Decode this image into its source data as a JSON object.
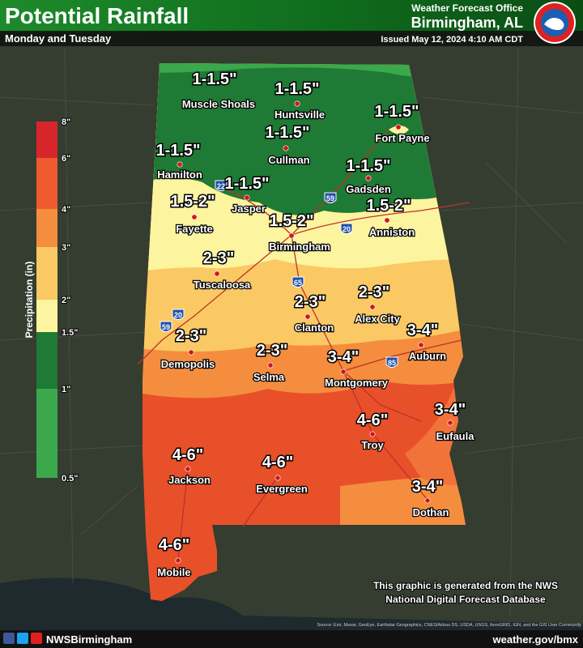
{
  "header": {
    "title": "Potential Rainfall",
    "subtitle": "Monday and Tuesday",
    "office": "Weather Forecast Office",
    "location": "Birmingham, AL",
    "issued": "Issued May 12, 2024 4:10 AM CDT"
  },
  "legend": {
    "title": "Precipitation (in)",
    "labels": [
      "8\"",
      "6\"",
      "4\"",
      "3\"",
      "2\"",
      "1.5\"",
      "1\"",
      "0.5\""
    ],
    "colors": [
      "#d6262a",
      "#ee5a2e",
      "#f58d3e",
      "#fac964",
      "#fcf49e",
      "#1e7a34",
      "#3ba84c"
    ]
  },
  "cities": [
    {
      "name": "Muscle Shoals",
      "amount": "1-1.5\""
    },
    {
      "name": "Huntsville",
      "amount": "1-1.5\""
    },
    {
      "name": "Fort Payne",
      "amount": "1-1.5\""
    },
    {
      "name": "Cullman",
      "amount": "1-1.5\""
    },
    {
      "name": "Hamilton",
      "amount": "1-1.5\""
    },
    {
      "name": "Jasper",
      "amount": "1-1.5\""
    },
    {
      "name": "Gadsden",
      "amount": "1-1.5\""
    },
    {
      "name": "Fayette",
      "amount": "1.5-2\""
    },
    {
      "name": "Birmingham",
      "amount": "1.5-2\""
    },
    {
      "name": "Anniston",
      "amount": "1.5-2\""
    },
    {
      "name": "Tuscaloosa",
      "amount": "2-3\""
    },
    {
      "name": "Alex City",
      "amount": "2-3\""
    },
    {
      "name": "Clanton",
      "amount": "2-3\""
    },
    {
      "name": "Demopolis",
      "amount": "2-3\""
    },
    {
      "name": "Auburn",
      "amount": "3-4\""
    },
    {
      "name": "Selma",
      "amount": "2-3\""
    },
    {
      "name": "Montgomery",
      "amount": "3-4\""
    },
    {
      "name": "Troy",
      "amount": "4-6\""
    },
    {
      "name": "Eufaula",
      "amount": "3-4\""
    },
    {
      "name": "Jackson",
      "amount": "4-6\""
    },
    {
      "name": "Evergreen",
      "amount": "4-6\""
    },
    {
      "name": "Dothan",
      "amount": "3-4\""
    },
    {
      "name": "Mobile",
      "amount": "4-6\""
    }
  ],
  "interstates": [
    "22",
    "59",
    "20",
    "65",
    "20",
    "59",
    "85"
  ],
  "note": [
    "This graphic is generated from the NWS",
    "National Digital Forecast Database"
  ],
  "source": "Source: Esri, Maxar, GeoEye, Earthstar Geographics, CNES/Airbus DS, USDA, USGS, AeroGRID, IGN, and the GIS User Community",
  "footer": {
    "handle": "NWSBirmingham",
    "url": "weather.gov/bmx"
  }
}
